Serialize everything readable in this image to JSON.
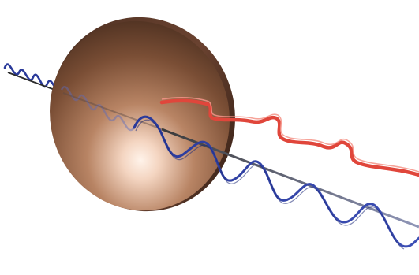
{
  "scene": {
    "objects": [
      "dish-disc",
      "incident-blue-wave",
      "transmitted-blue-wave",
      "reflected-red-ribbon-wave",
      "propagation-axis-line"
    ],
    "colors": {
      "background": "#ffffff",
      "dish_dark": "#3b2418",
      "dish_mid": "#8a5a3e",
      "dish_highlight": "#fff3ea",
      "blue_wave": "#2a3a9a",
      "red_wave": "#e0463b",
      "axis_line": "#2c2c2c"
    }
  }
}
